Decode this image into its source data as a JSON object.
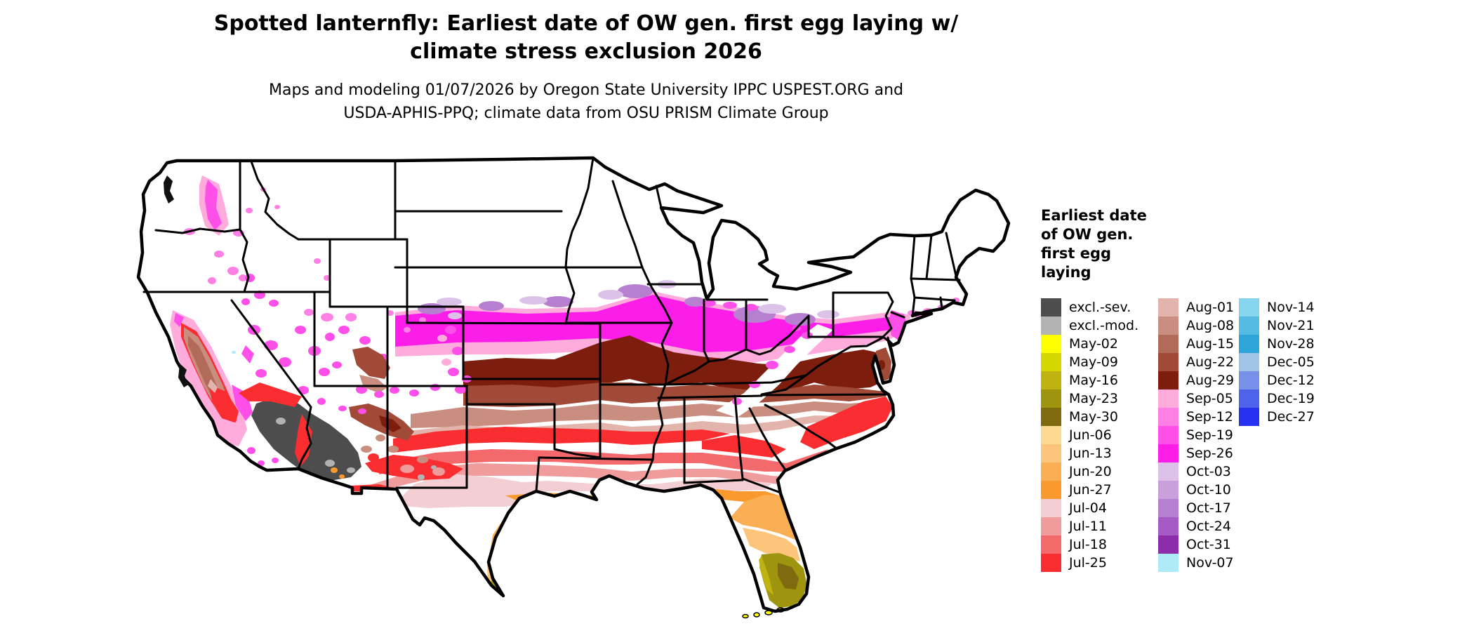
{
  "title": {
    "line1": "Spotted lanternfly: Earliest date of OW gen. first egg laying w/",
    "line2": "climate stress exclusion 2026"
  },
  "subtitle": {
    "line1": "Maps and modeling 01/07/2026 by Oregon State University IPPC USPEST.ORG and",
    "line2": "USDA-APHIS-PPQ; climate data from OSU PRISM Climate Group"
  },
  "map": {
    "region": "Contiguous United States choropleth of earliest date of overwintering generation first egg laying"
  },
  "legend": {
    "title_lines": [
      "Earliest date",
      "of OW gen.",
      "first egg",
      "laying"
    ],
    "columns": [
      {
        "entries": [
          {
            "label": "excl.-sev.",
            "color": "#4d4d4d"
          },
          {
            "label": "excl.-mod.",
            "color": "#b3b3b3"
          },
          {
            "label": "May-02",
            "color": "#ffff00"
          },
          {
            "label": "May-09",
            "color": "#d6d600"
          },
          {
            "label": "May-16",
            "color": "#bfb312"
          },
          {
            "label": "May-23",
            "color": "#9e940d"
          },
          {
            "label": "May-30",
            "color": "#806a0f"
          },
          {
            "label": "Jun-06",
            "color": "#fcd993"
          },
          {
            "label": "Jun-13",
            "color": "#fdc57c"
          },
          {
            "label": "Jun-20",
            "color": "#fbaf54"
          },
          {
            "label": "Jun-27",
            "color": "#f9992e"
          },
          {
            "label": "Jul-04",
            "color": "#f3cfd3"
          },
          {
            "label": "Jul-11",
            "color": "#f19c9c"
          },
          {
            "label": "Jul-18",
            "color": "#f4696b"
          },
          {
            "label": "Jul-25",
            "color": "#fa2e31"
          }
        ]
      },
      {
        "entries": [
          {
            "label": "Aug-01",
            "color": "#e2b4ab"
          },
          {
            "label": "Aug-08",
            "color": "#c98e80"
          },
          {
            "label": "Aug-15",
            "color": "#b26b59"
          },
          {
            "label": "Aug-22",
            "color": "#a14a38"
          },
          {
            "label": "Aug-29",
            "color": "#7d1d0e"
          },
          {
            "label": "Sep-05",
            "color": "#ffabdc"
          },
          {
            "label": "Sep-12",
            "color": "#ff80e5"
          },
          {
            "label": "Sep-19",
            "color": "#fe50e9"
          },
          {
            "label": "Sep-26",
            "color": "#fd1de9"
          },
          {
            "label": "Oct-03",
            "color": "#dcc2e8"
          },
          {
            "label": "Oct-10",
            "color": "#c9a0dc"
          },
          {
            "label": "Oct-17",
            "color": "#b67fd0"
          },
          {
            "label": "Oct-24",
            "color": "#a55bc3"
          },
          {
            "label": "Oct-31",
            "color": "#8e2dab"
          },
          {
            "label": "Nov-07",
            "color": "#aeebf8"
          }
        ]
      },
      {
        "entries": [
          {
            "label": "Nov-14",
            "color": "#87d4ee"
          },
          {
            "label": "Nov-21",
            "color": "#55bbe2"
          },
          {
            "label": "Nov-28",
            "color": "#2da5d8"
          },
          {
            "label": "Dec-05",
            "color": "#a0c4e6"
          },
          {
            "label": "Dec-12",
            "color": "#7791e8"
          },
          {
            "label": "Dec-19",
            "color": "#4c63ea"
          },
          {
            "label": "Dec-27",
            "color": "#2731f2"
          }
        ]
      }
    ]
  }
}
